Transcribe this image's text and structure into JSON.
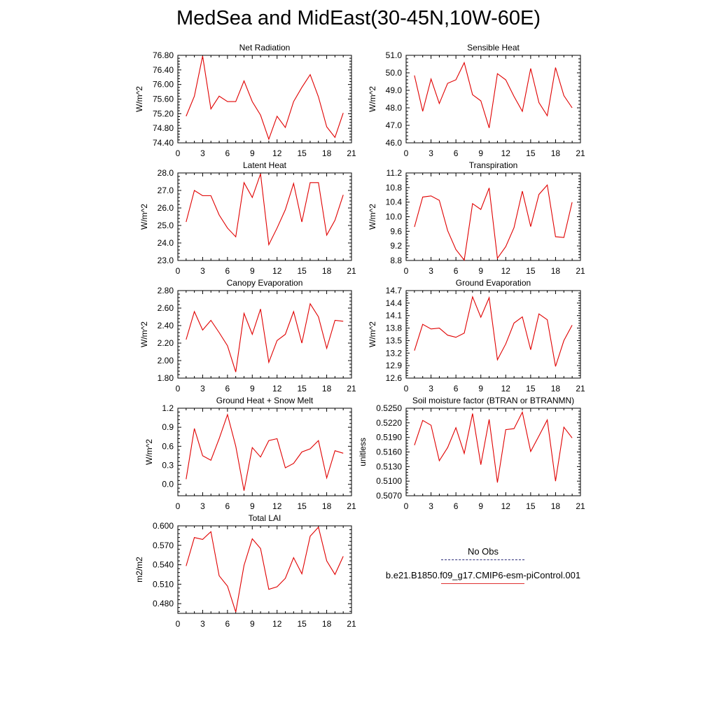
{
  "title": "MedSea and MidEast(30-45N,10W-60E)",
  "legend": [
    {
      "label": "No Obs",
      "color": "#2b2b7a",
      "dashed": true
    },
    {
      "label": "b.e21.B1850.f09_g17.CMIP6-esm-piControl.001",
      "color": "#e03030",
      "dashed": false
    }
  ],
  "chart_data": [
    {
      "type": "line",
      "title": "Net Radiation",
      "xlabel": "",
      "ylabel": "W/m^2",
      "xlim": [
        0,
        21
      ],
      "xticks": [
        "0",
        "3",
        "6",
        "9",
        "12",
        "15",
        "18",
        "21"
      ],
      "ylim": [
        74.4,
        76.8
      ],
      "yticks": [
        "74.40",
        "74.80",
        "75.20",
        "75.60",
        "76.00",
        "76.40",
        "76.80"
      ],
      "grid": false,
      "series": [
        {
          "color": "#e00000",
          "x": [
            1,
            2,
            3,
            4,
            5,
            6,
            7,
            8,
            9,
            10,
            11,
            12,
            13,
            14,
            15,
            16,
            17,
            18,
            19,
            20
          ],
          "y": [
            75.13,
            75.68,
            76.78,
            75.33,
            75.68,
            75.53,
            75.53,
            76.1,
            75.53,
            75.16,
            74.5,
            75.13,
            74.82,
            75.53,
            75.92,
            76.27,
            75.66,
            74.84,
            74.55,
            75.22
          ]
        }
      ]
    },
    {
      "type": "line",
      "title": "Sensible Heat",
      "xlabel": "",
      "ylabel": "W/m^2",
      "xlim": [
        0,
        21
      ],
      "xticks": [
        "0",
        "3",
        "6",
        "9",
        "12",
        "15",
        "18",
        "21"
      ],
      "ylim": [
        46.0,
        51.0
      ],
      "yticks": [
        "46.0",
        "47.0",
        "48.0",
        "49.0",
        "50.0",
        "51.0"
      ],
      "grid": false,
      "series": [
        {
          "color": "#e00000",
          "x": [
            1,
            2,
            3,
            4,
            5,
            6,
            7,
            8,
            9,
            10,
            11,
            12,
            13,
            14,
            15,
            16,
            17,
            18,
            19,
            20
          ],
          "y": [
            49.85,
            47.8,
            49.65,
            48.25,
            49.4,
            49.6,
            50.58,
            48.75,
            48.4,
            46.85,
            49.95,
            49.6,
            48.65,
            47.8,
            50.25,
            48.3,
            47.55,
            50.3,
            48.7,
            48.0
          ]
        }
      ]
    },
    {
      "type": "line",
      "title": "Latent Heat",
      "xlabel": "",
      "ylabel": "W/m^2",
      "xlim": [
        0,
        21
      ],
      "xticks": [
        "0",
        "3",
        "6",
        "9",
        "12",
        "15",
        "18",
        "21"
      ],
      "ylim": [
        23.0,
        28.0
      ],
      "yticks": [
        "23.0",
        "24.0",
        "25.0",
        "26.0",
        "27.0",
        "28.0"
      ],
      "grid": false,
      "series": [
        {
          "color": "#e00000",
          "x": [
            1,
            2,
            3,
            4,
            5,
            6,
            7,
            8,
            9,
            10,
            11,
            12,
            13,
            14,
            15,
            16,
            17,
            18,
            19,
            20
          ],
          "y": [
            25.2,
            27.0,
            26.7,
            26.7,
            25.6,
            24.85,
            24.35,
            27.45,
            26.6,
            27.95,
            23.9,
            24.85,
            25.9,
            27.4,
            25.2,
            27.45,
            27.45,
            24.45,
            25.3,
            26.75
          ]
        }
      ]
    },
    {
      "type": "line",
      "title": "Transpiration",
      "xlabel": "",
      "ylabel": "W/m^2",
      "xlim": [
        0,
        21
      ],
      "xticks": [
        "0",
        "3",
        "6",
        "9",
        "12",
        "15",
        "18",
        "21"
      ],
      "ylim": [
        8.8,
        11.2
      ],
      "yticks": [
        "8.8",
        "9.2",
        "9.6",
        "10.0",
        "10.4",
        "10.8",
        "11.2"
      ],
      "grid": false,
      "series": [
        {
          "color": "#e00000",
          "x": [
            1,
            2,
            3,
            4,
            5,
            6,
            7,
            8,
            9,
            10,
            11,
            12,
            13,
            14,
            15,
            16,
            17,
            18,
            19,
            20
          ],
          "y": [
            9.72,
            10.54,
            10.57,
            10.45,
            9.62,
            9.1,
            8.81,
            10.36,
            10.2,
            10.79,
            8.86,
            9.18,
            9.7,
            10.7,
            9.73,
            10.61,
            10.87,
            9.45,
            9.43,
            10.4
          ]
        }
      ]
    },
    {
      "type": "line",
      "title": "Canopy Evaporation",
      "xlabel": "",
      "ylabel": "W/m^2",
      "xlim": [
        0,
        21
      ],
      "xticks": [
        "0",
        "3",
        "6",
        "9",
        "12",
        "15",
        "18",
        "21"
      ],
      "ylim": [
        1.8,
        2.8
      ],
      "yticks": [
        "1.80",
        "2.00",
        "2.20",
        "2.40",
        "2.60",
        "2.80"
      ],
      "grid": false,
      "series": [
        {
          "color": "#e00000",
          "x": [
            1,
            2,
            3,
            4,
            5,
            6,
            7,
            8,
            9,
            10,
            11,
            12,
            13,
            14,
            15,
            16,
            17,
            18,
            19,
            20
          ],
          "y": [
            2.24,
            2.56,
            2.35,
            2.46,
            2.32,
            2.17,
            1.87,
            2.54,
            2.3,
            2.59,
            1.98,
            2.23,
            2.3,
            2.56,
            2.2,
            2.65,
            2.5,
            2.14,
            2.46,
            2.45
          ]
        }
      ]
    },
    {
      "type": "line",
      "title": "Ground Evaporation",
      "xlabel": "",
      "ylabel": "W/m^2",
      "xlim": [
        0,
        21
      ],
      "xticks": [
        "0",
        "3",
        "6",
        "9",
        "12",
        "15",
        "18",
        "21"
      ],
      "ylim": [
        12.6,
        14.7
      ],
      "yticks": [
        "12.6",
        "12.9",
        "13.2",
        "13.5",
        "13.8",
        "14.1",
        "14.4",
        "14.7"
      ],
      "grid": false,
      "series": [
        {
          "color": "#e00000",
          "x": [
            1,
            2,
            3,
            4,
            5,
            6,
            7,
            8,
            9,
            10,
            11,
            12,
            13,
            14,
            15,
            16,
            17,
            18,
            19,
            20
          ],
          "y": [
            13.26,
            13.89,
            13.78,
            13.8,
            13.63,
            13.58,
            13.68,
            14.55,
            14.06,
            14.53,
            13.04,
            13.42,
            13.92,
            14.07,
            13.28,
            14.14,
            14.0,
            12.88,
            13.5,
            13.87
          ]
        }
      ]
    },
    {
      "type": "line",
      "title": "Ground Heat + Snow Melt",
      "xlabel": "",
      "ylabel": "W/m^2",
      "xlim": [
        0,
        21
      ],
      "xticks": [
        "0",
        "3",
        "6",
        "9",
        "12",
        "15",
        "18",
        "21"
      ],
      "ylim": [
        -0.18,
        1.2
      ],
      "yticks": [
        "0.0",
        "0.3",
        "0.6",
        "0.9",
        "1.2"
      ],
      "grid": false,
      "series": [
        {
          "color": "#e00000",
          "x": [
            1,
            2,
            3,
            4,
            5,
            6,
            7,
            8,
            9,
            10,
            11,
            12,
            13,
            14,
            15,
            16,
            17,
            18,
            19,
            20
          ],
          "y": [
            0.08,
            0.88,
            0.45,
            0.38,
            0.72,
            1.1,
            0.6,
            -0.1,
            0.58,
            0.43,
            0.69,
            0.72,
            0.26,
            0.33,
            0.51,
            0.56,
            0.69,
            0.1,
            0.53,
            0.49
          ]
        }
      ]
    },
    {
      "type": "line",
      "title": "Soil moisture factor (BTRAN or BTRANMN)",
      "xlabel": "",
      "ylabel": "unitless",
      "xlim": [
        0,
        21
      ],
      "xticks": [
        "0",
        "3",
        "6",
        "9",
        "12",
        "15",
        "18",
        "21"
      ],
      "ylim": [
        0.507,
        0.525
      ],
      "yticks": [
        "0.5070",
        "0.5100",
        "0.5130",
        "0.5160",
        "0.5190",
        "0.5220",
        "0.5250"
      ],
      "grid": false,
      "series": [
        {
          "color": "#e00000",
          "x": [
            1,
            2,
            3,
            4,
            5,
            6,
            7,
            8,
            9,
            10,
            11,
            12,
            13,
            14,
            15,
            16,
            17,
            18,
            19,
            20
          ],
          "y": [
            0.5174,
            0.5225,
            0.5215,
            0.5142,
            0.5169,
            0.521,
            0.5157,
            0.5239,
            0.5134,
            0.5227,
            0.5097,
            0.5206,
            0.5208,
            0.5242,
            0.5161,
            0.5193,
            0.5226,
            0.51,
            0.5211,
            0.5189
          ]
        }
      ]
    },
    {
      "type": "line",
      "title": "Total LAI",
      "xlabel": "",
      "ylabel": "m2/m2",
      "xlim": [
        0,
        21
      ],
      "xticks": [
        "0",
        "3",
        "6",
        "9",
        "12",
        "15",
        "18",
        "21"
      ],
      "ylim": [
        0.465,
        0.6
      ],
      "yticks": [
        "0.480",
        "0.510",
        "0.540",
        "0.570",
        "0.600"
      ],
      "grid": false,
      "series": [
        {
          "color": "#e00000",
          "x": [
            1,
            2,
            3,
            4,
            5,
            6,
            7,
            8,
            9,
            10,
            11,
            12,
            13,
            14,
            15,
            16,
            17,
            18,
            19,
            20
          ],
          "y": [
            0.538,
            0.582,
            0.579,
            0.591,
            0.523,
            0.507,
            0.467,
            0.539,
            0.58,
            0.565,
            0.502,
            0.506,
            0.519,
            0.551,
            0.526,
            0.584,
            0.598,
            0.546,
            0.525,
            0.553
          ]
        }
      ]
    }
  ]
}
